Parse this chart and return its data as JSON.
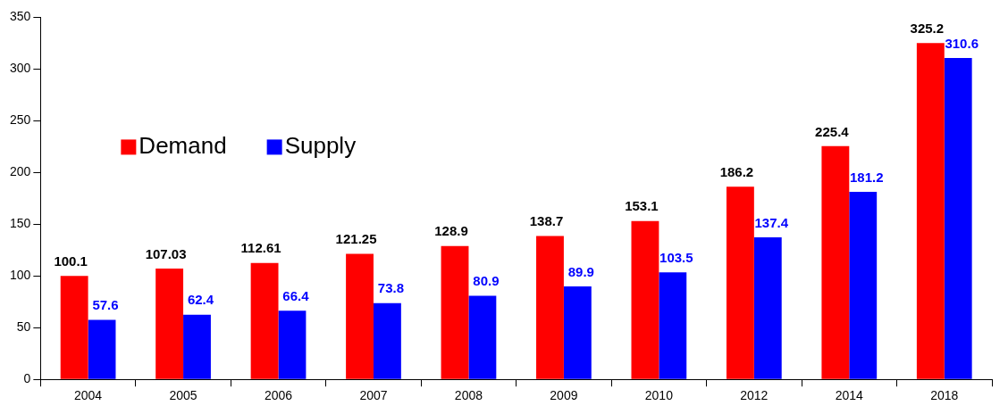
{
  "chart_data": {
    "type": "bar",
    "categories": [
      "2004",
      "2005",
      "2006",
      "2007",
      "2008",
      "2009",
      "2010",
      "2012",
      "2014",
      "2018"
    ],
    "series": [
      {
        "name": "Demand",
        "color": "#ff0000",
        "values": [
          100.1,
          107.03,
          112.61,
          121.25,
          128.9,
          138.7,
          153.1,
          186.2,
          225.4,
          325.2
        ]
      },
      {
        "name": "Supply",
        "color": "#0000ff",
        "values": [
          57.6,
          62.4,
          66.4,
          73.8,
          80.9,
          89.9,
          103.5,
          137.4,
          181.2,
          310.6
        ]
      }
    ],
    "ylim": [
      0,
      350
    ],
    "yticks": [
      0,
      50,
      100,
      150,
      200,
      250,
      300,
      350
    ],
    "grid": false,
    "legend": "top left",
    "data_labels": true
  }
}
